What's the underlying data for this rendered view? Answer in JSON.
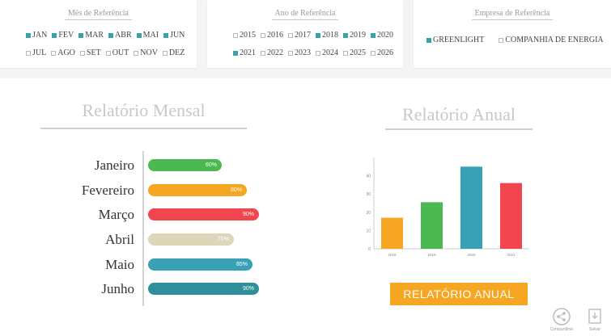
{
  "filters": {
    "month": {
      "title": "Mês de Referência",
      "row1": [
        {
          "label": "JAN",
          "checked": true
        },
        {
          "label": "FEV",
          "checked": true
        },
        {
          "label": "MAR",
          "checked": true
        },
        {
          "label": "ABR",
          "checked": true
        },
        {
          "label": "MAI",
          "checked": true
        },
        {
          "label": "JUN",
          "checked": true
        }
      ],
      "row2": [
        {
          "label": "JUL",
          "checked": false
        },
        {
          "label": "AGO",
          "checked": false
        },
        {
          "label": "SET",
          "checked": false
        },
        {
          "label": "OUT",
          "checked": false
        },
        {
          "label": "NOV",
          "checked": false
        },
        {
          "label": "DEZ",
          "checked": false
        }
      ]
    },
    "year": {
      "title": "Ano de Referência",
      "row1": [
        {
          "label": "2015",
          "checked": false
        },
        {
          "label": "2016",
          "checked": false
        },
        {
          "label": "2017",
          "checked": false
        },
        {
          "label": "2018",
          "checked": true
        },
        {
          "label": "2019",
          "checked": true
        },
        {
          "label": "2020",
          "checked": true
        }
      ],
      "row2": [
        {
          "label": "2021",
          "checked": true
        },
        {
          "label": "2022",
          "checked": false
        },
        {
          "label": "2023",
          "checked": false
        },
        {
          "label": "2024",
          "checked": false
        },
        {
          "label": "2025",
          "checked": false
        },
        {
          "label": "2026",
          "checked": false
        }
      ]
    },
    "company": {
      "title": "Empresa de Referência",
      "items": [
        {
          "label": "GREENLIGHT",
          "checked": true
        },
        {
          "label": "COMPANHIA DE ENERGIA",
          "checked": false
        }
      ]
    }
  },
  "monthly": {
    "title": "Relatório Mensal",
    "rows": [
      {
        "month": "Janeiro",
        "value": 60,
        "label": "60%",
        "color": "#4cb851"
      },
      {
        "month": "Fevereiro",
        "value": 80,
        "label": "80%",
        "color": "#f6a623"
      },
      {
        "month": "Março",
        "value": 90,
        "label": "90%",
        "color": "#f1454f"
      },
      {
        "month": "Abril",
        "value": 70,
        "label": "70%",
        "color": "#ddd6b8"
      },
      {
        "month": "Maio",
        "value": 85,
        "label": "85%",
        "color": "#3aa1b5"
      },
      {
        "month": "Junho",
        "value": 90,
        "label": "90%",
        "color": "#2f8f9b"
      }
    ]
  },
  "annual": {
    "title": "Relatório Anual",
    "button_label": "RELATÓRIO ANUAL"
  },
  "chart_data": {
    "type": "bar",
    "categories": [
      "2018",
      "2019",
      "2020",
      "2021"
    ],
    "values": [
      17,
      25.5,
      45,
      36
    ],
    "colors": [
      "#f6a623",
      "#4cb851",
      "#3aa1b5",
      "#f1454f"
    ],
    "yticks": [
      0,
      10,
      20,
      30,
      40
    ],
    "ylim": [
      0,
      50
    ],
    "grid": false
  },
  "footer": {
    "share_label": "Compartilhar",
    "save_label": "Salvar"
  }
}
